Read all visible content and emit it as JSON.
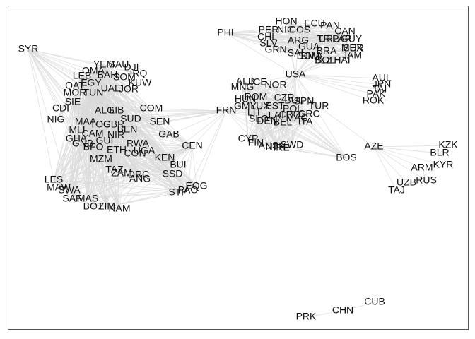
{
  "graph": {
    "colors": {
      "edge": "#d9d9d9",
      "label": "#111111",
      "frame": "#555555"
    },
    "nodes": [
      "SYR",
      "PHI",
      "USA",
      "AUL",
      "JPN",
      "TAI",
      "PAK",
      "ROK",
      "YEM",
      "SAU",
      "DJI",
      "OMA",
      "BAH",
      "IRQ",
      "LEB",
      "SOM",
      "QAT",
      "EGY",
      "KUW",
      "MOR",
      "TUN",
      "UAE",
      "JOR",
      "SIE",
      "CDI",
      "ALG",
      "LIB",
      "COM",
      "NIG",
      "MAA",
      "TOG",
      "GBR",
      "SUD",
      "SEN",
      "MLI",
      "CAM",
      "BEN",
      "NIR",
      "GHA",
      "GUI",
      "GAB",
      "GNB",
      "BFO",
      "RWA",
      "ETH",
      "UGA",
      "CON",
      "CEN",
      "KEN",
      "BUI",
      "MZM",
      "TAZ",
      "ZAM",
      "DRC",
      "ANG",
      "SSD",
      "LES",
      "MAW",
      "SWA",
      "SAF",
      "MAS",
      "BOT",
      "ZIM",
      "NAM",
      "STP",
      "EQG",
      "PAO",
      "FRN",
      "ALB",
      "NOR",
      "MNG",
      "ICE",
      "HUN",
      "ROM",
      "CZR",
      "SPN",
      "GMY",
      "LUX",
      "EST",
      "BUL",
      "POL",
      "TUR",
      "LIT",
      "LAT",
      "SLO",
      "CRO",
      "GRC",
      "MAC",
      "DEN",
      "BEL",
      "CYP",
      "FIN",
      "AUS",
      "SWD",
      "IRE",
      "NTH",
      "ITA",
      "BOS",
      "AZE",
      "KZK",
      "BLR",
      "KYR",
      "ARM",
      "RUS",
      "UZB",
      "TAJ",
      "CUB",
      "CHN",
      "PRK",
      "PER",
      "NIC",
      "CHL",
      "COS",
      "SLV",
      "HON",
      "GUA",
      "DOM",
      "ECU",
      "PAN",
      "ARG",
      "BRA",
      "URU",
      "PAR",
      "BOL",
      "MEX",
      "CAN",
      "JAM",
      "GRN",
      "DMA",
      "SAL",
      "BLZ",
      "HAI",
      "TRI",
      "GUY",
      "SUR"
    ]
  }
}
